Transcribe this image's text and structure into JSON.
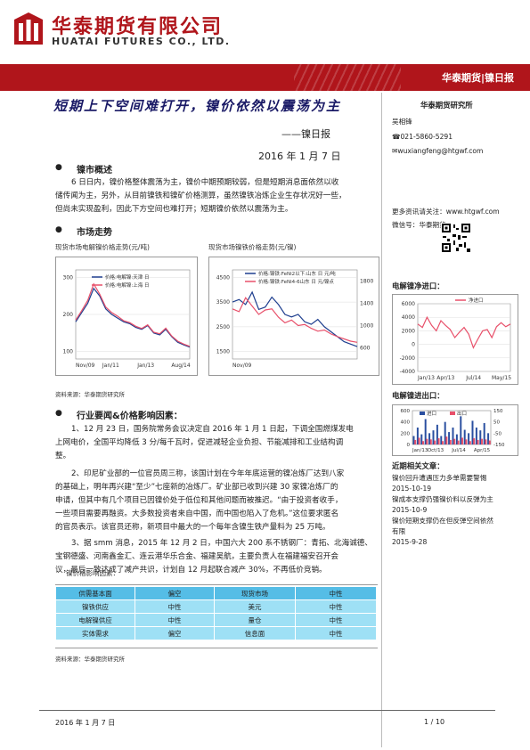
{
  "company": {
    "cn": "华泰期货有限公司",
    "en": "HUATAI FUTURES CO., LTD."
  },
  "banner": "华泰期货|镍日报",
  "title": "短期上下空间难打开，镍价依然以震荡为主",
  "subtitle": "——镍日报",
  "date": "2016 年 1 月 7 日",
  "sidebar": {
    "institute": "华泰期货研究所",
    "analyst": "吴相锋",
    "phone": "☎021-5860-5291",
    "email": "✉wuxiangfeng@htgwf.com",
    "web": "更多资讯请关注：www.htgwf.com",
    "wechat": "微信号：华泰期货",
    "import_title": "电解镍净进口：",
    "export_title": "电解镍进出口：",
    "related_title": "近期相关文章：",
    "related": [
      {
        "t": "镍价回升遭遇压力多单需要警惕",
        "d": "2015-10-19"
      },
      {
        "t": "镍成本支撑仍强镍价料以反弹为主",
        "d": "2015-10-9"
      },
      {
        "t": "镍价短期支撑仍在但反弹空间依然有限",
        "d": "2015-9-28"
      }
    ]
  },
  "s1": {
    "head": "镍市概述",
    "lines": [
      "6 日日内，镍价格整体震荡为主，镍价中期预期较弱，但是短期消息面依然以收",
      "储传闻为主，另外，从目前镍铁和镍矿价格测算，虽然镍铁冶炼企业生存状况好一些，",
      "但尚未实现盈利，因此下方空间也难打开；短期镍价依然以震荡为主。"
    ]
  },
  "s2": {
    "head": "市场走势",
    "c1_title": "现货市场电解镍价格走势(元/吨)",
    "c2_title": "现货市场镍铁价格走势(元/镍)",
    "source": "资料来源：华泰期货研究所"
  },
  "s3": {
    "head": "行业要闻&价格影响因素：",
    "p1": [
      "1、12 月 23 日，国务院常务会议决定自 2016 年 1 月 1 日起，下调全国燃煤发电",
      "上网电价，全国平均降低 3 分/每千瓦时，促进减轻企业负担、节能减排和工业结构调",
      "整。"
    ],
    "p2": [
      "2、印尼矿业部的一位官员周三称，该国计划在今年年底运营的镍冶炼厂达到八家",
      "的基础上，明年再兴建“至少”七座新的冶炼厂。矿业部已收到兴建 30 家镍冶炼厂的",
      "申请，但其中有几个项目已因镍价处于低位和其他问题而被推迟。“由于投资者收手，",
      "一些项目需要再融资。大多数投资者来自中国，而中国也陷入了危机。”这位要求匿名",
      "的官员表示。该官员还称，新项目中最大的一个每年含镍生铁产量料为 25 万吨。"
    ],
    "p3": [
      "3、据 smm 消息，2015 年 12 月 2 日，中国六大 200 系不锈钢厂：青拓、北海诚德、",
      "宝钢德盛、河南鑫金汇、连云港华乐合金、福建吴航，主要负责人在福建福安召开会",
      "议，最后一致达成了减产共识，计划自 12 月起联合减产 30%，不再低价竞销。"
    ],
    "table_title": "镍价格影响因素：",
    "table": [
      [
        "供需基本面",
        "偏空",
        "现货市场",
        "中性"
      ],
      [
        "镍铁供应",
        "中性",
        "美元",
        "中性"
      ],
      [
        "电解镍供应",
        "中性",
        "量仓",
        "中性"
      ],
      [
        "实体需求",
        "偏空",
        "信息面",
        "中性"
      ]
    ],
    "source": "资料来源：华泰期货研究所"
  },
  "footer": {
    "date": "2016 年 1 月 7 日",
    "page": "1 / 10"
  },
  "chart_data": [
    {
      "type": "line",
      "title": "现货市场电解镍价格走势(元/吨)",
      "x_ticks": [
        "Nov/09",
        "Jan/11",
        "Jan/13",
        "Aug/14"
      ],
      "y_ticks": [
        100,
        200,
        300
      ],
      "ylim": [
        80,
        320
      ],
      "series": [
        {
          "name": "价格:电解镍:天津 日",
          "color": "#1f3f8f",
          "values": [
            180,
            205,
            230,
            270,
            250,
            215,
            200,
            190,
            180,
            175,
            165,
            160,
            170,
            150,
            145,
            160,
            140,
            125,
            118,
            112
          ]
        },
        {
          "name": "价格:电解镍:上海 日",
          "color": "#e8506a",
          "values": [
            185,
            210,
            238,
            282,
            255,
            220,
            205,
            195,
            183,
            178,
            168,
            162,
            172,
            152,
            148,
            163,
            142,
            128,
            120,
            114
          ]
        }
      ]
    },
    {
      "type": "line",
      "title": "现货市场镍铁价格走势(元/镍)",
      "x_ticks": [
        "Nov/09"
      ],
      "y_left_ticks": [
        1500,
        2500,
        3500,
        4500
      ],
      "y_right_ticks": [
        600,
        1000,
        1400,
        1800
      ],
      "series": [
        {
          "name": "价格:镍铁:FeNi2以下:山东 日 元/吨",
          "color": "#1f3f8f",
          "values": [
            3500,
            3600,
            3400,
            3900,
            3200,
            3300,
            3700,
            3400,
            3000,
            2900,
            3000,
            2700,
            2600,
            2800,
            2500,
            2300,
            2100,
            1900,
            1800,
            1700
          ]
        },
        {
          "name": "价格:镍铁:FeNi4-6山东 日 元/镍点",
          "color": "#e8506a",
          "values": [
            1300,
            1250,
            1500,
            1350,
            1200,
            1280,
            1300,
            1150,
            1050,
            1100,
            1000,
            1020,
            950,
            900,
            920,
            850,
            800,
            760,
            720,
            700
          ]
        }
      ]
    },
    {
      "type": "line",
      "title": "电解镍净进口：",
      "x_ticks": [
        "Jan/13",
        "Apr/13",
        "Jul/14",
        "May/15"
      ],
      "y_ticks": [
        -4000,
        -2000,
        0,
        2000,
        4000,
        6000
      ],
      "ylim": [
        -4000,
        6000
      ],
      "series": [
        {
          "name": "净进口",
          "color": "#e8506a",
          "values": [
            3000,
            2500,
            4000,
            2800,
            2000,
            3500,
            2800,
            2200,
            1000,
            1800,
            2500,
            1500,
            -500,
            800,
            2000,
            2200,
            1000,
            2600,
            3200,
            2600,
            3000
          ]
        }
      ]
    },
    {
      "type": "bar",
      "title": "电解镍进出口：",
      "x_ticks": [
        "Jan/13",
        "Oct/13",
        "Jul/14",
        "Apr/15"
      ],
      "y_left_ticks": [
        0,
        200,
        400,
        600
      ],
      "y_right_ticks": [
        -150,
        -50,
        50,
        150
      ],
      "series": [
        {
          "name": "进口",
          "color": "#2a4fa0",
          "values": [
            150,
            300,
            180,
            450,
            200,
            250,
            350,
            150,
            400,
            220,
            300,
            180,
            500,
            260,
            200,
            420,
            300,
            250,
            380,
            200
          ]
        },
        {
          "name": "出口",
          "color": "#e8506a",
          "values": [
            80,
            120,
            60,
            100,
            90,
            70,
            110,
            60,
            140,
            80,
            100,
            70,
            120,
            90,
            60,
            110,
            80,
            100,
            90,
            70
          ]
        }
      ]
    }
  ]
}
